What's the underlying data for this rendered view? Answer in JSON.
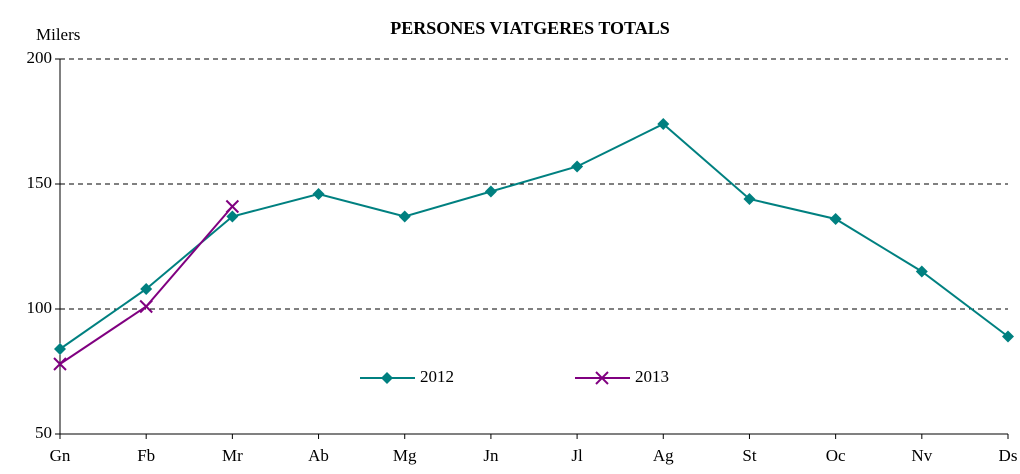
{
  "chart_data": {
    "type": "line",
    "title": "PERSONES VIATGERES TOTALS",
    "y_label": "Milers",
    "categories": [
      "Gn",
      "Fb",
      "Mr",
      "Ab",
      "Mg",
      "Jn",
      "Jl",
      "Ag",
      "St",
      "Oc",
      "Nv",
      "Ds"
    ],
    "series": [
      {
        "name": "2012",
        "color": "#008080",
        "marker": "diamond",
        "values": [
          84,
          108,
          137,
          146,
          137,
          147,
          157,
          174,
          144,
          136,
          115,
          89
        ]
      },
      {
        "name": "2013",
        "color": "#800080",
        "marker": "x",
        "values": [
          78,
          101,
          141,
          null,
          null,
          null,
          null,
          null,
          null,
          null,
          null,
          null
        ]
      }
    ],
    "ylim": [
      50,
      200
    ],
    "yticks": [
      50,
      100,
      150,
      200
    ],
    "grid": true
  }
}
